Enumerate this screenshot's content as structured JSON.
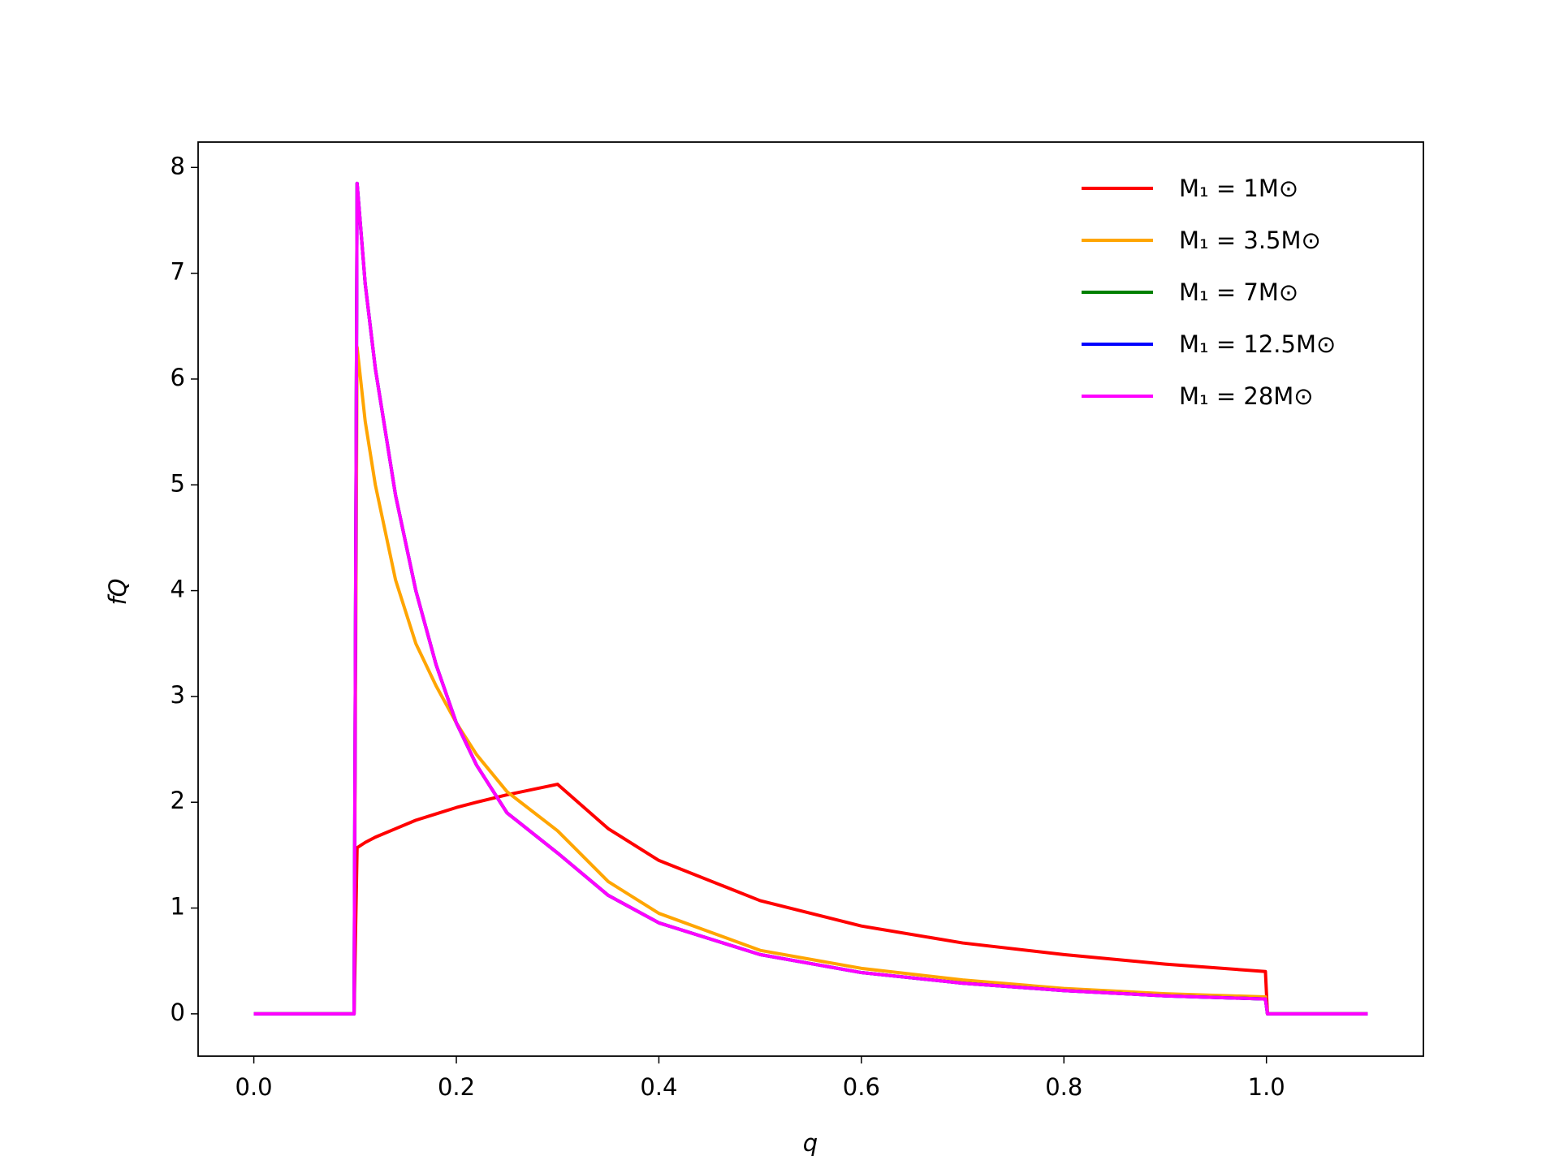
{
  "chart_data": {
    "type": "line",
    "xlabel": "q",
    "ylabel": "fQ",
    "x": [
      0,
      0.099,
      0.102,
      0.11,
      0.12,
      0.14,
      0.16,
      0.18,
      0.2,
      0.22,
      0.25,
      0.3,
      0.35,
      0.4,
      0.5,
      0.6,
      0.7,
      0.8,
      0.9,
      0.999,
      1.001,
      1.1
    ],
    "series": [
      {
        "name": "M₁ = 1M⊙",
        "color": "#ff0000",
        "values": [
          0,
          0,
          1.57,
          1.62,
          1.67,
          1.75,
          1.83,
          1.89,
          1.95,
          2.0,
          2.07,
          2.17,
          1.75,
          1.45,
          1.07,
          0.83,
          0.67,
          0.56,
          0.47,
          0.4,
          0,
          0
        ]
      },
      {
        "name": "M₁ = 3.5M⊙",
        "color": "#ffa500",
        "values": [
          0,
          0,
          6.3,
          5.6,
          5.0,
          4.1,
          3.5,
          3.1,
          2.75,
          2.45,
          2.1,
          1.73,
          1.25,
          0.95,
          0.6,
          0.43,
          0.32,
          0.24,
          0.19,
          0.16,
          0,
          0
        ]
      },
      {
        "name": "M₁ = 7M⊙",
        "color": "#008000",
        "values": [
          0,
          0,
          7.85,
          6.9,
          6.1,
          4.9,
          4.0,
          3.3,
          2.75,
          2.35,
          1.9,
          1.52,
          1.12,
          0.86,
          0.56,
          0.39,
          0.29,
          0.22,
          0.17,
          0.14,
          0,
          0
        ]
      },
      {
        "name": "M₁ = 12.5M⊙",
        "color": "#0000ff",
        "values": [
          0,
          0,
          7.85,
          6.9,
          6.1,
          4.9,
          4.0,
          3.3,
          2.75,
          2.35,
          1.9,
          1.52,
          1.12,
          0.86,
          0.56,
          0.39,
          0.29,
          0.22,
          0.17,
          0.14,
          0,
          0
        ]
      },
      {
        "name": "M₁ = 28M⊙",
        "color": "#ff00ff",
        "values": [
          0,
          0,
          7.85,
          6.9,
          6.1,
          4.9,
          4.0,
          3.3,
          2.75,
          2.35,
          1.9,
          1.52,
          1.12,
          0.86,
          0.56,
          0.39,
          0.29,
          0.22,
          0.17,
          0.14,
          0,
          0
        ]
      }
    ],
    "xlim": [
      -0.055,
      1.155
    ],
    "ylim": [
      -0.4,
      8.24
    ],
    "xticks": [
      {
        "value": 0,
        "label": "0.0"
      },
      0.2,
      0.4,
      0.6,
      0.8,
      {
        "value": 1,
        "label": "1.0"
      }
    ],
    "yticks": [
      0,
      1,
      2,
      3,
      4,
      5,
      6,
      7,
      8
    ],
    "grid": false,
    "legend": "upper right"
  }
}
